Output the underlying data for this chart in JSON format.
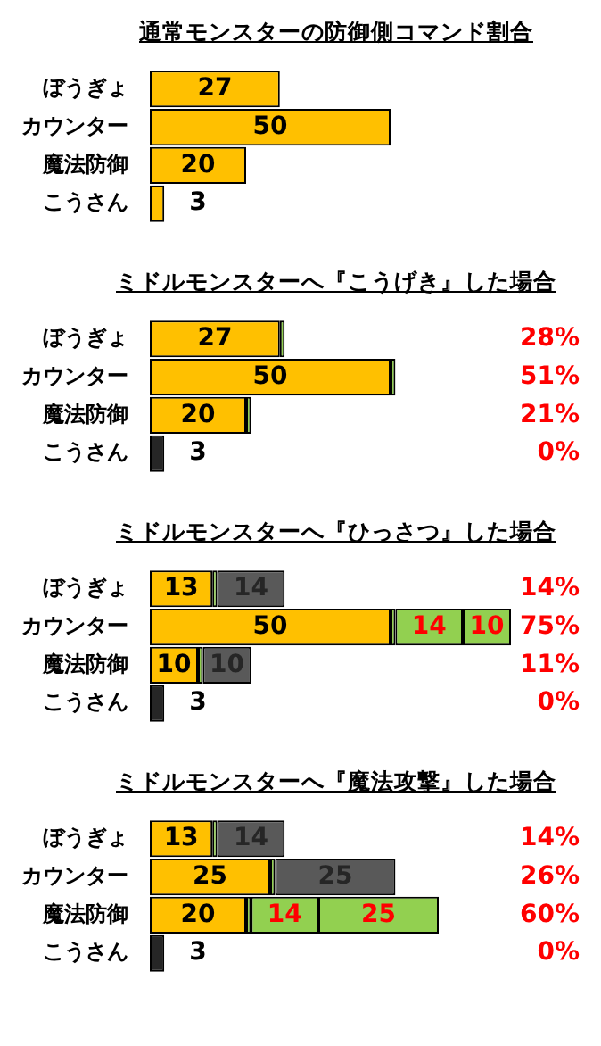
{
  "chart_data": [
    {
      "type": "bar",
      "orientation": "horizontal",
      "stacked": true,
      "tick_labels": "y",
      "title": "通常モンスターの防御側コマンド割合",
      "categories": [
        "ぼうぎょ",
        "カウンター",
        "魔法防御",
        "こうさん"
      ],
      "series": [
        {
          "colors": [
            "#ffc000",
            "#ffc000",
            "#ffc000",
            "#ffc000"
          ],
          "values": [
            27,
            50,
            20,
            3
          ],
          "value_labels": [
            "27",
            "50",
            "20",
            "3"
          ]
        }
      ]
    },
    {
      "type": "bar",
      "orientation": "horizontal",
      "stacked": true,
      "tick_labels": "y",
      "title": "ミドルモンスターへ『こうげき』した場合",
      "categories": [
        "ぼうぎょ",
        "カウンター",
        "魔法防御",
        "こうさん"
      ],
      "series": [
        {
          "colors": [
            "#ffc000",
            "#ffc000",
            "#ffc000",
            "#262626"
          ],
          "values": [
            27,
            50,
            20,
            3
          ],
          "value_labels": [
            "27",
            "50",
            "20",
            "3"
          ]
        },
        {
          "colors": [
            "#92d050",
            "#92d050",
            "#92d050",
            "#92d050"
          ],
          "values": [
            1,
            1,
            1,
            null
          ]
        }
      ],
      "annotations": [
        "28%",
        "51%",
        "21%",
        "0%"
      ]
    },
    {
      "type": "bar",
      "orientation": "horizontal",
      "stacked": true,
      "tick_labels": "y",
      "title": "ミドルモンスターへ『ひっさつ』した場合",
      "categories": [
        "ぼうぎょ",
        "カウンター",
        "魔法防御",
        "こうさん"
      ],
      "series": [
        {
          "colors": [
            "#ffc000",
            "#ffc000",
            "#ffc000",
            "#262626"
          ],
          "values": [
            13,
            50,
            10,
            3
          ],
          "value_labels": [
            "13",
            "50",
            "10",
            "3"
          ]
        },
        {
          "colors": [
            "#92d050",
            "#92d050",
            "#92d050",
            "#92d050"
          ],
          "values": [
            1,
            1,
            1,
            null
          ]
        },
        {
          "colors": [
            "#595959",
            "#92d050",
            "#595959",
            "#595959"
          ],
          "values": [
            14,
            14,
            10,
            null
          ],
          "value_labels": [
            "14",
            "14",
            "10",
            null
          ]
        },
        {
          "colors": [
            "#92d050",
            "#92d050",
            "#92d050",
            "#92d050"
          ],
          "values": [
            null,
            10,
            null,
            null
          ],
          "value_labels": [
            null,
            "10",
            null,
            null
          ]
        }
      ],
      "annotations": [
        "14%",
        "75%",
        "11%",
        "0%"
      ]
    },
    {
      "type": "bar",
      "orientation": "horizontal",
      "stacked": true,
      "tick_labels": "y",
      "title": "ミドルモンスターへ『魔法攻撃』した場合",
      "categories": [
        "ぼうぎょ",
        "カウンター",
        "魔法防御",
        "こうさん"
      ],
      "series": [
        {
          "colors": [
            "#ffc000",
            "#ffc000",
            "#ffc000",
            "#262626"
          ],
          "values": [
            13,
            25,
            20,
            3
          ],
          "value_labels": [
            "13",
            "25",
            "20",
            "3"
          ]
        },
        {
          "colors": [
            "#92d050",
            "#92d050",
            "#92d050",
            "#92d050"
          ],
          "values": [
            1,
            1,
            1,
            null
          ]
        },
        {
          "colors": [
            "#595959",
            "#595959",
            "#92d050",
            "#595959"
          ],
          "values": [
            14,
            25,
            14,
            null
          ],
          "value_labels": [
            "14",
            "25",
            "14",
            null
          ]
        },
        {
          "colors": [
            "#92d050",
            "#92d050",
            "#92d050",
            "#92d050"
          ],
          "values": [
            null,
            null,
            25,
            null
          ],
          "value_labels": [
            null,
            null,
            "25",
            null
          ]
        }
      ],
      "annotations": [
        "14%",
        "26%",
        "60%",
        "0%"
      ]
    }
  ]
}
